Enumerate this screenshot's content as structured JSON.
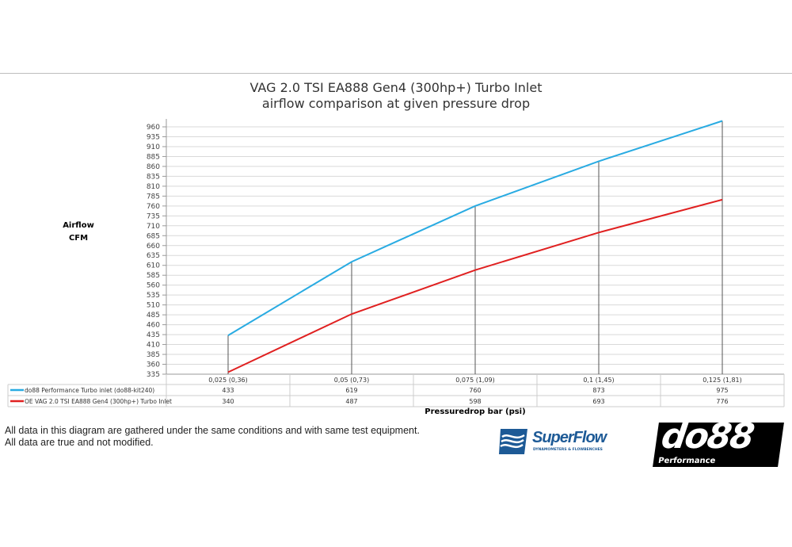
{
  "chart_data": {
    "type": "line",
    "title": "VAG 2.0 TSI EA888 Gen4 (300hp+) Turbo Inlet",
    "subtitle": "airflow comparison at given pressure drop",
    "ylabel": [
      "Airflow",
      "CFM"
    ],
    "xlabel": "Pressuredrop bar (psi)",
    "categories": [
      "0,025 (0,36)",
      "0,05 (0,73)",
      "0,075 (1,09)",
      "0,1 (1,45)",
      "0,125 (1,81)"
    ],
    "ylim": [
      335,
      960
    ],
    "ytick_step": 25,
    "grid": true,
    "legend": "data-table",
    "series": [
      {
        "name": "do88 Performance Turbo inlet (do88-kit240)",
        "color": "#29abe2",
        "values": [
          433,
          619,
          760,
          873,
          975
        ]
      },
      {
        "name": "OE VAG 2.0 TSI EA888 Gen4 (300hp+) Turbo Inlet",
        "color": "#e02020",
        "values": [
          340,
          487,
          598,
          693,
          776
        ]
      }
    ]
  },
  "footer": {
    "line1": "All data in this diagram are gathered under the same conditions and with same test equipment.",
    "line2": "All data are true and not modified."
  },
  "logos": {
    "superflow": "SuperFlow",
    "superflow_sub": "DYNAMOMETERS & FLOWBENCHES",
    "do88": "do88",
    "do88_sub": "Performance"
  }
}
